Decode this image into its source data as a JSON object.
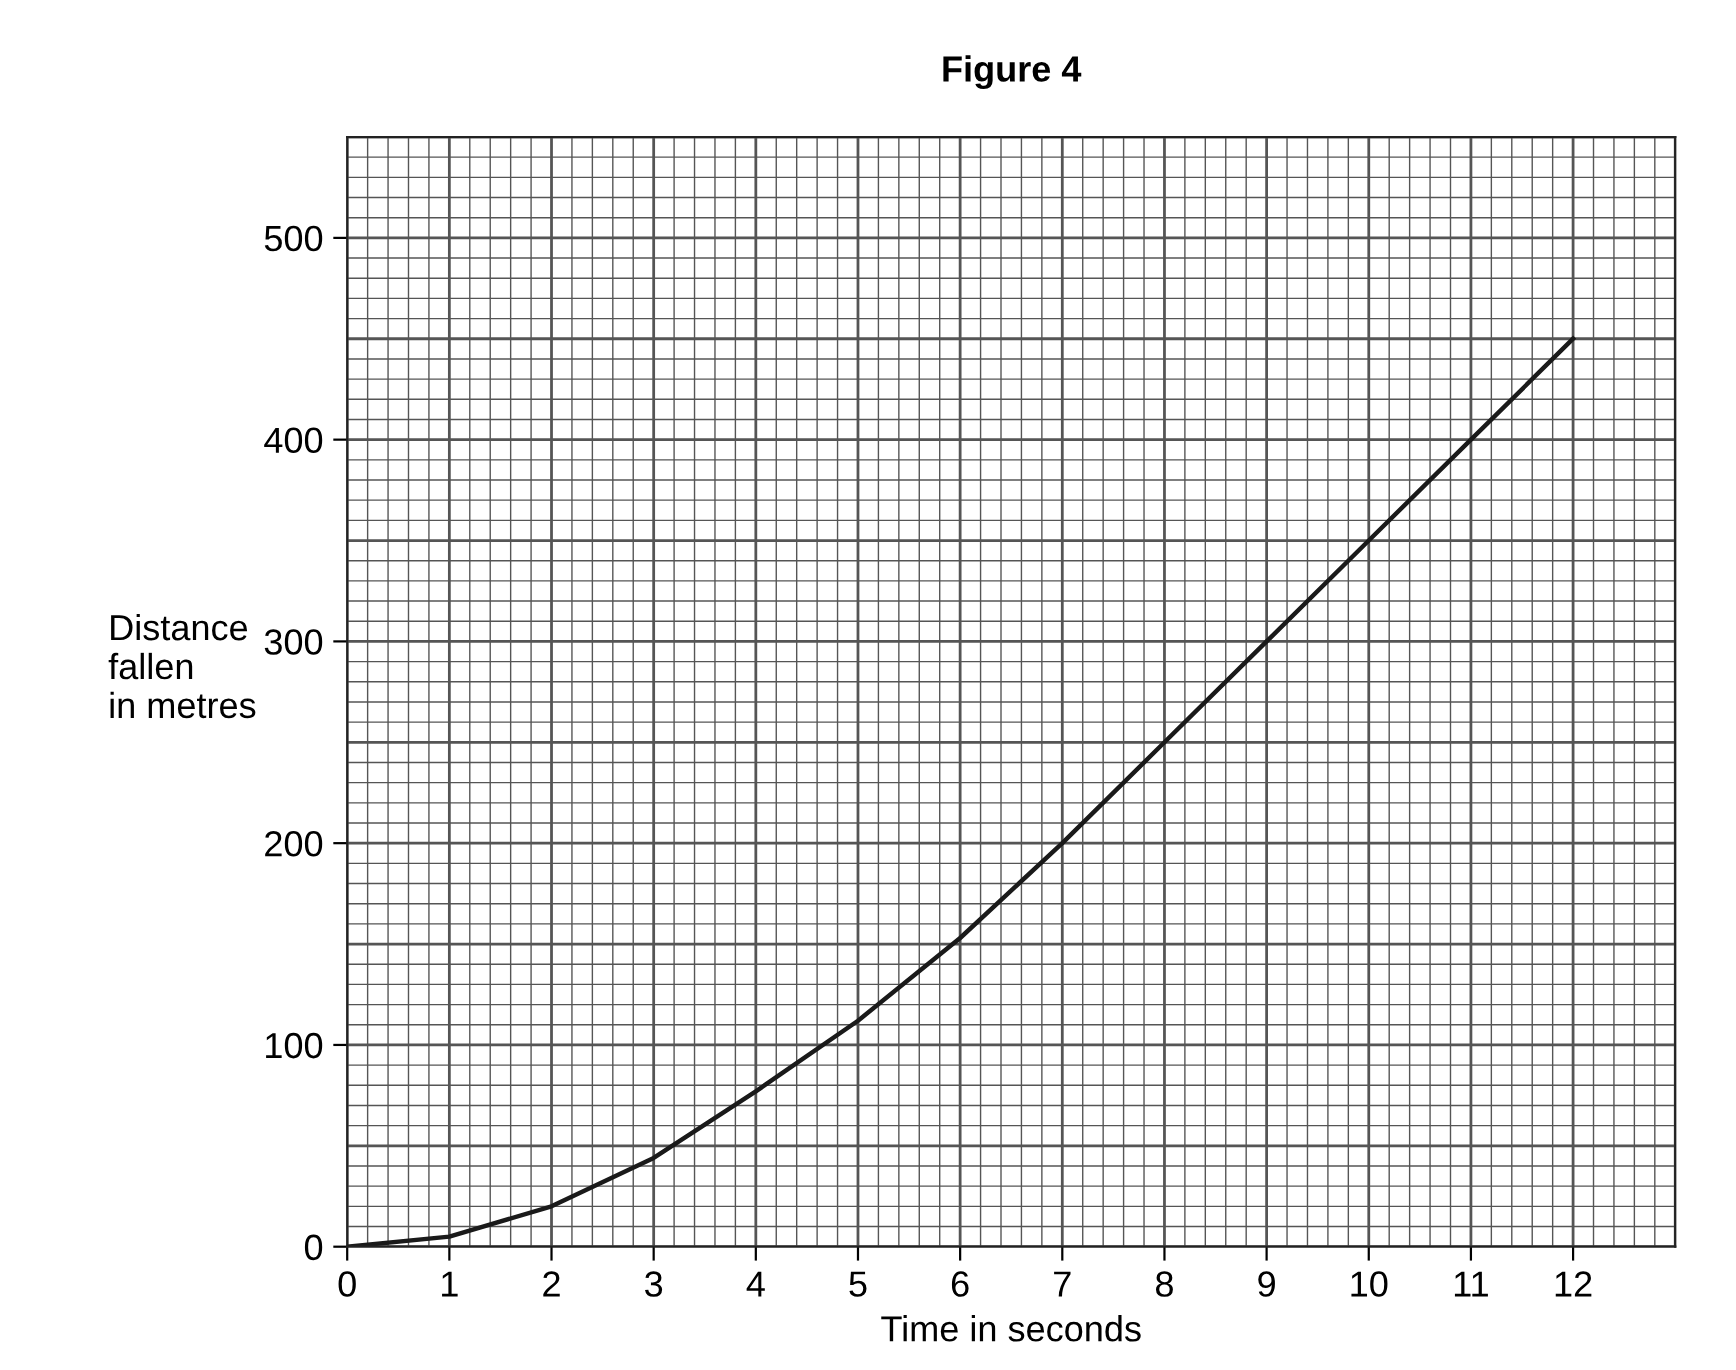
{
  "chart_data": {
    "type": "line",
    "title": "Figure 4",
    "xlabel": "Time in seconds",
    "ylabel": "Distance\nfallen\nin metres",
    "x": [
      0,
      1,
      2,
      3,
      4,
      5,
      6,
      7,
      8,
      9,
      10,
      11,
      12
    ],
    "series": [
      {
        "color": "#1a1a1a",
        "values": [
          0,
          5,
          20,
          44,
          77,
          112,
          153,
          200,
          250,
          300,
          350,
          400,
          450
        ]
      }
    ],
    "xlim": [
      0,
      13
    ],
    "ylim": [
      0,
      550
    ],
    "xticks": [
      0,
      1,
      2,
      3,
      4,
      5,
      6,
      7,
      8,
      9,
      10,
      11,
      12
    ],
    "yticks": [
      0,
      100,
      200,
      300,
      400,
      500
    ],
    "grid": true,
    "marker": "none",
    "line_style": "solid"
  }
}
